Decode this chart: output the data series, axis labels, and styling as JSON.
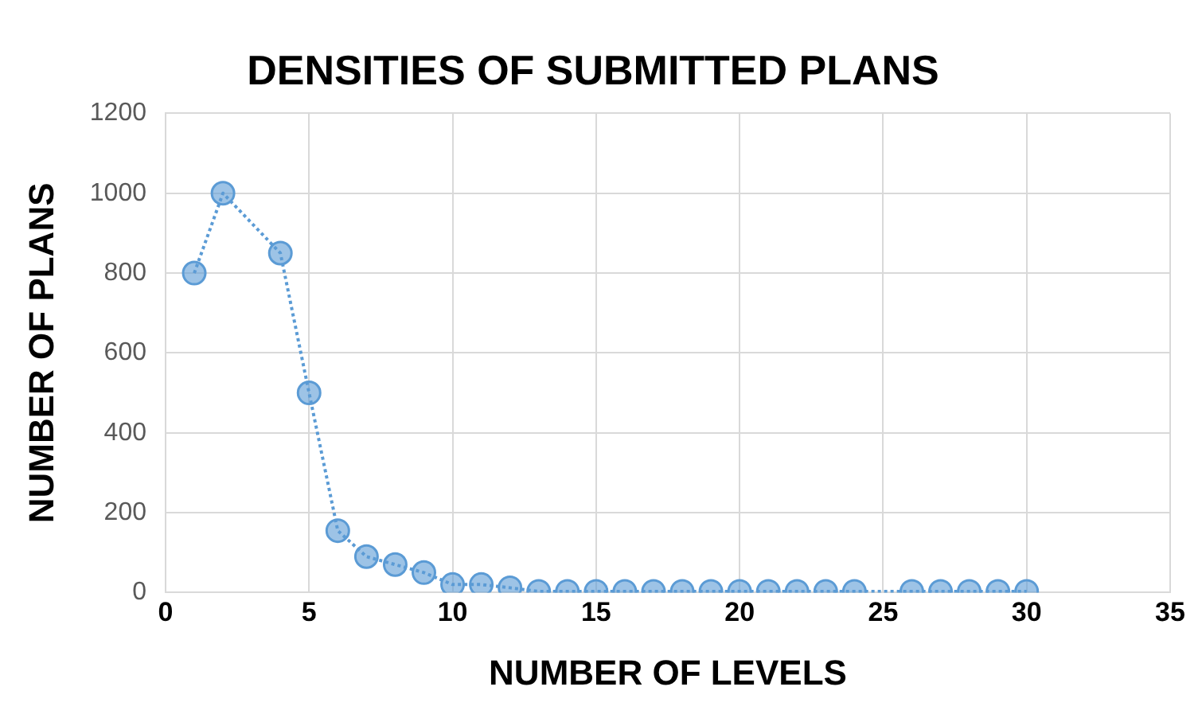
{
  "chart_data": {
    "type": "line",
    "title": "DENSITIES OF SUBMITTED PLANS",
    "xlabel": "NUMBER OF LEVELS",
    "ylabel": "NUMBER OF PLANS",
    "x": [
      1,
      2,
      4,
      5,
      6,
      7,
      8,
      9,
      10,
      11,
      12,
      13,
      14,
      15,
      16,
      17,
      18,
      19,
      20,
      21,
      22,
      23,
      24,
      26,
      27,
      28,
      29,
      30
    ],
    "series": [
      {
        "color": "#5b9bd5",
        "values": [
          800,
          1000,
          850,
          500,
          155,
          90,
          70,
          50,
          20,
          20,
          12,
          3,
          3,
          3,
          3,
          3,
          3,
          3,
          3,
          3,
          3,
          3,
          3,
          3,
          3,
          3,
          3,
          3
        ]
      }
    ],
    "xlim": [
      0,
      35
    ],
    "xticks": [
      0,
      5,
      10,
      15,
      20,
      25,
      30,
      35
    ],
    "ylim": [
      0,
      1200
    ],
    "yticks": [
      0,
      200,
      400,
      600,
      800,
      1000,
      1200
    ],
    "grid": true,
    "legend": false,
    "marker": "circle",
    "line_style": "dotted"
  }
}
